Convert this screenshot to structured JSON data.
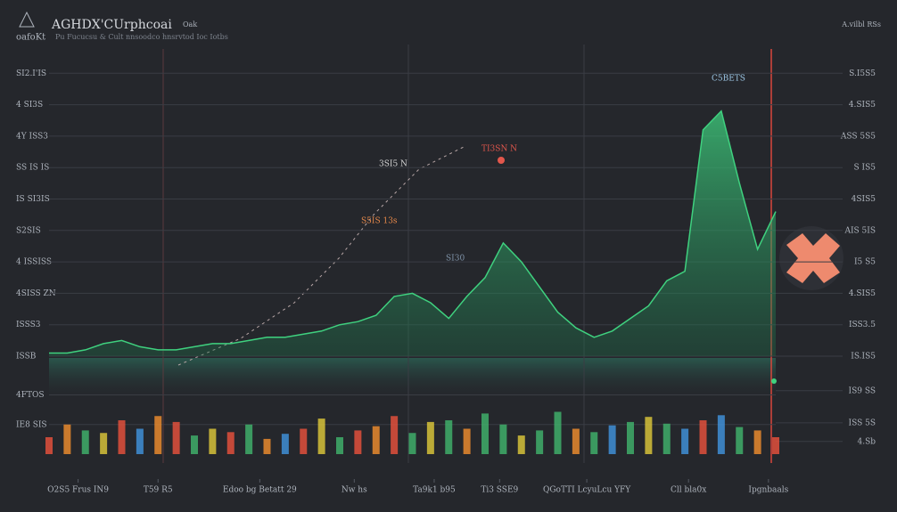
{
  "header": {
    "logo": "oafoKt",
    "tag": "Oak",
    "badge": "A.vilbl RSs"
  },
  "chart_data": [
    {
      "type": "area",
      "title": "AGHDX'CUrphcoai",
      "subtitle": "Pu Fucucsu & Cult   nnsoodco hnsrvtod Ioc Iotbs",
      "x": [
        0,
        2.5,
        5,
        7.5,
        10,
        12.5,
        15,
        17.5,
        20,
        22.5,
        25,
        27.5,
        30,
        32.5,
        35,
        37.5,
        40,
        42.5,
        45,
        47.5,
        50,
        52.5,
        55,
        57.5,
        60,
        62.5,
        65,
        67.5,
        70,
        72.5,
        75,
        77.5,
        80,
        82.5,
        85,
        87.5,
        90,
        92.5,
        95,
        97.5,
        100
      ],
      "values": [
        1,
        1,
        2,
        4,
        5,
        3,
        2,
        2,
        3,
        4,
        4,
        5,
        6,
        6,
        7,
        8,
        10,
        11,
        13,
        19,
        20,
        17,
        12,
        19,
        25,
        36,
        30,
        22,
        14,
        9,
        6,
        8,
        12,
        16,
        24,
        27,
        72,
        78,
        55,
        34,
        46
      ],
      "color": "#3fd17f",
      "xlim": [
        0,
        100
      ],
      "xticks": [
        {
          "value": 4,
          "label": "O2S5 Frus IN9"
        },
        {
          "value": 15,
          "label": "T59 R5"
        },
        {
          "value": 29,
          "label": "Edoo bg Betatt 29"
        },
        {
          "value": 42,
          "label": "Nw hs"
        },
        {
          "value": 53,
          "label": "Ta9k1 b95"
        },
        {
          "value": 62,
          "label": "Ti3 SSE9"
        },
        {
          "value": 74,
          "label": "QGoTTI LcyuLcu YFY"
        },
        {
          "value": 88,
          "label": "Cll bla0x"
        },
        {
          "value": 99,
          "label": "Ipgnbaals"
        }
      ],
      "ylim": [
        0,
        100
      ],
      "yticks": [
        {
          "value": 0,
          "label": "ISSB"
        },
        {
          "value": 10,
          "label": "ISSS3"
        },
        {
          "value": 20,
          "label": "4SISS ZN"
        },
        {
          "value": 30,
          "label": "4 ISSISS"
        },
        {
          "value": 40,
          "label": "S2SIS"
        },
        {
          "value": 50,
          "label": "IS SI3IS"
        },
        {
          "value": 60,
          "label": "SS IS IS"
        },
        {
          "value": 70,
          "label": "4Y ISS3"
        },
        {
          "value": 80,
          "label": "4 SI3S"
        },
        {
          "value": 90,
          "label": "SI2.I'IS"
        }
      ],
      "y2lim": [
        0,
        100
      ],
      "y2ticks": [
        {
          "value": 0,
          "label": "IS.IS5"
        },
        {
          "value": 10,
          "label": "ISS3.5"
        },
        {
          "value": 20,
          "label": "4.SIS5"
        },
        {
          "value": 30,
          "label": "I5 S5"
        },
        {
          "value": 40,
          "label": "AIS 5IS"
        },
        {
          "value": 50,
          "label": "4SIS5"
        },
        {
          "value": 60,
          "label": "S IS5"
        },
        {
          "value": 70,
          "label": "ASS 5S5"
        },
        {
          "value": 80,
          "label": "4.SIS5"
        },
        {
          "value": 90,
          "label": "S.I5S5"
        }
      ],
      "grid": true,
      "annotations": [
        {
          "text": "3SI5 N",
          "color": "#d9d9d9"
        },
        {
          "text": "TI3SN N",
          "color": "#e2574c"
        },
        {
          "text": "S5IS 13s",
          "color": "#e8894a"
        },
        {
          "text": "C5BETS",
          "color": "#9ec9e8"
        },
        {
          "text": "SI30",
          "color": "#7f93a8"
        }
      ]
    },
    {
      "type": "bar",
      "x": [
        0,
        2.5,
        5,
        7.5,
        10,
        12.5,
        15,
        17.5,
        20,
        22.5,
        25,
        27.5,
        30,
        32.5,
        35,
        37.5,
        40,
        42.5,
        45,
        47.5,
        50,
        52.5,
        55,
        57.5,
        60,
        62.5,
        65,
        67.5,
        70,
        72.5,
        75,
        77.5,
        80,
        82.5,
        85,
        87.5,
        90,
        92.5,
        95,
        97.5,
        100
      ],
      "values": [
        20,
        35,
        28,
        25,
        40,
        30,
        45,
        38,
        22,
        30,
        26,
        35,
        18,
        24,
        30,
        42,
        20,
        28,
        33,
        45,
        25,
        38,
        40,
        30,
        48,
        35,
        22,
        28,
        50,
        30,
        26,
        34,
        38,
        44,
        36,
        30,
        40,
        46,
        32,
        28,
        20
      ],
      "colors": [
        "#e0503c",
        "#e88a2e",
        "#3fae6a",
        "#d6c23a",
        "#e0503c",
        "#3f8fd6",
        "#e88a2e",
        "#e0503c",
        "#3fae6a",
        "#d6c23a",
        "#e0503c",
        "#3fae6a",
        "#e88a2e",
        "#3f8fd6",
        "#e0503c",
        "#d6c23a",
        "#3fae6a",
        "#e0503c",
        "#e88a2e",
        "#e0503c",
        "#3fae6a",
        "#d6c23a",
        "#3fae6a",
        "#e88a2e",
        "#3fae6a",
        "#3fae6a",
        "#d6c23a",
        "#3fae6a",
        "#3fae6a",
        "#e88a2e",
        "#3fae6a",
        "#3f8fd6",
        "#3fae6a",
        "#d6c23a",
        "#3fae6a",
        "#3f8fd6",
        "#e0503c",
        "#3f8fd6",
        "#3fae6a",
        "#e88a2e",
        "#e0503c"
      ],
      "ylim": [
        0,
        100
      ],
      "yticks": [
        {
          "value": 35,
          "label": "IE8 SIS"
        },
        {
          "value": 70,
          "label": "4FTOS"
        }
      ],
      "y2lim": [
        0,
        100
      ],
      "y2ticks": [
        {
          "value": 15,
          "label": "4.Sb"
        },
        {
          "value": 37,
          "label": "ISS 5S"
        },
        {
          "value": 75,
          "label": "IS9 SS"
        }
      ]
    }
  ]
}
